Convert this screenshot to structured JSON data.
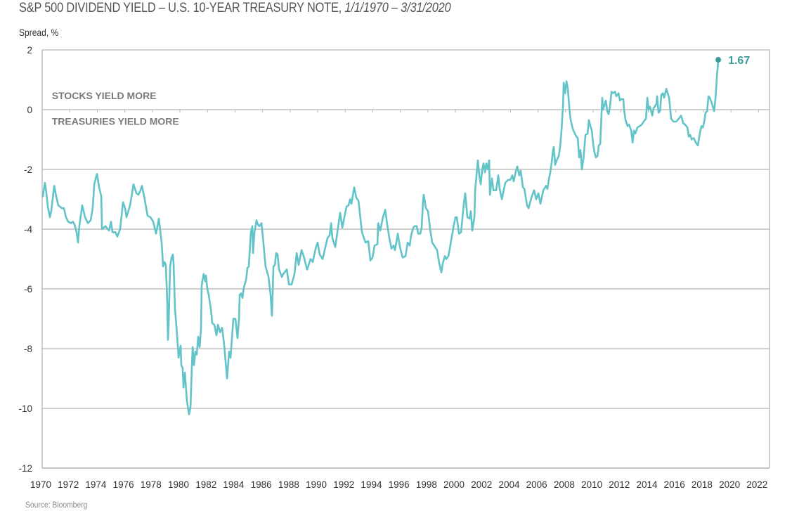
{
  "chart_data": {
    "type": "line",
    "title": "S&P 500 DIVIDEND YIELD – U.S. 10-YEAR TREASURY NOTE,",
    "title_range": "1/1/1970 – 3/31/2020",
    "xlabel": "",
    "ylabel": "Spread, %",
    "source": "Source: Bloomberg",
    "xlim": [
      1970,
      2022.8
    ],
    "ylim": [
      -12,
      2
    ],
    "grid": true,
    "legend": "none",
    "yticks": [
      2,
      0,
      -2,
      -4,
      -6,
      -8,
      -10,
      -12
    ],
    "ytick_labels": [
      "2",
      "0",
      "-2",
      "-4",
      "-6",
      "-8",
      "-10",
      "-12"
    ],
    "xticks": [
      1970,
      1972,
      1974,
      1976,
      1978,
      1980,
      1982,
      1984,
      1986,
      1988,
      1990,
      1992,
      1994,
      1996,
      1998,
      2000,
      2002,
      2004,
      2006,
      2008,
      2010,
      2012,
      2014,
      2016,
      2018,
      2020,
      2022
    ],
    "xtick_labels": [
      "1970",
      "1972",
      "1974",
      "1976",
      "1978",
      "1980",
      "1982",
      "1984",
      "1986",
      "1988",
      "1990",
      "1992",
      "1994",
      "1996",
      "1998",
      "2000",
      "2002",
      "2004",
      "2006",
      "2008",
      "2010",
      "2012",
      "2014",
      "2016",
      "2018",
      "2020",
      "2022"
    ],
    "annotations": [
      {
        "text": "STOCKS YIELD MORE",
        "x": 1970.7,
        "y": 0.35
      },
      {
        "text": "TREASURIES YIELD MORE",
        "x": 1970.7,
        "y": -0.5
      }
    ],
    "end_label": {
      "text": "1.67",
      "value": 1.67
    },
    "colors": {
      "line": "#62c3c8",
      "end_point": "#3a9c98",
      "grid": "#b4b4b4",
      "annotation": "#7a7a7a"
    },
    "series": [
      {
        "name": "S&P 500 dividend yield minus 10-year Treasury yield",
        "x": [
          1970.05,
          1970.2,
          1970.31,
          1970.41,
          1970.56,
          1970.66,
          1970.87,
          1971.02,
          1971.17,
          1971.43,
          1971.58,
          1971.73,
          1971.89,
          1972.09,
          1972.24,
          1972.35,
          1972.5,
          1972.6,
          1972.7,
          1972.91,
          1973.11,
          1973.32,
          1973.52,
          1973.67,
          1973.78,
          1973.88,
          1973.98,
          1974.13,
          1974.29,
          1974.34,
          1974.59,
          1974.85,
          1975.0,
          1975.1,
          1975.31,
          1975.46,
          1975.66,
          1975.87,
          1976.02,
          1976.12,
          1976.38,
          1976.63,
          1976.84,
          1976.99,
          1977.14,
          1977.24,
          1977.4,
          1977.65,
          1977.86,
          1978.06,
          1978.27,
          1978.47,
          1978.67,
          1978.78,
          1978.88,
          1978.98,
          1979.08,
          1979.13,
          1979.18,
          1979.29,
          1979.39,
          1979.49,
          1979.54,
          1979.64,
          1979.8,
          1979.9,
          1980.05,
          1980.1,
          1980.2,
          1980.26,
          1980.36,
          1980.51,
          1980.66,
          1980.77,
          1980.87,
          1980.92,
          1981.02,
          1981.12,
          1981.22,
          1981.33,
          1981.43,
          1981.53,
          1981.58,
          1981.68,
          1981.73,
          1981.84,
          1981.89,
          1981.99,
          1982.09,
          1982.24,
          1982.35,
          1982.5,
          1982.65,
          1982.76,
          1982.91,
          1983.06,
          1983.21,
          1983.42,
          1983.57,
          1983.67,
          1983.88,
          1984.03,
          1984.18,
          1984.29,
          1984.34,
          1984.44,
          1984.54,
          1984.64,
          1984.8,
          1984.9,
          1985.0,
          1985.15,
          1985.26,
          1985.31,
          1985.41,
          1985.56,
          1985.66,
          1985.77,
          1985.92,
          1986.02,
          1986.22,
          1986.43,
          1986.58,
          1986.68,
          1986.79,
          1986.89,
          1986.99,
          1987.09,
          1987.19,
          1987.4,
          1987.5,
          1987.76,
          1987.91,
          1988.11,
          1988.32,
          1988.47,
          1988.62,
          1988.83,
          1988.98,
          1989.23,
          1989.49,
          1989.64,
          1989.85,
          1990.0,
          1990.15,
          1990.36,
          1990.71,
          1990.87,
          1990.97,
          1991.07,
          1991.28,
          1991.63,
          1991.79,
          1992.09,
          1992.24,
          1992.35,
          1992.45,
          1992.65,
          1992.81,
          1992.96,
          1993.21,
          1993.47,
          1993.67,
          1993.83,
          1993.98,
          1994.13,
          1994.34,
          1994.39,
          1994.54,
          1994.74,
          1994.9,
          1995.05,
          1995.2,
          1995.36,
          1995.51,
          1995.61,
          1995.82,
          1995.97,
          1996.17,
          1996.38,
          1996.53,
          1996.68,
          1996.79,
          1996.94,
          1997.04,
          1997.19,
          1997.3,
          1997.45,
          1997.55,
          1997.65,
          1997.7,
          1997.86,
          1998.01,
          1998.16,
          1998.32,
          1998.52,
          1998.67,
          1998.83,
          1998.98,
          1999.08,
          1999.23,
          1999.34,
          1999.49,
          1999.59,
          1999.85,
          2000.0,
          2000.1,
          2000.26,
          2000.41,
          2000.61,
          2000.71,
          2000.87,
          2001.02,
          2001.12,
          2001.22,
          2001.38,
          2001.43,
          2001.63,
          2001.73,
          2001.84,
          2001.94,
          2002.04,
          2002.14,
          2002.24,
          2002.35,
          2002.45,
          2002.5,
          2002.65,
          2002.76,
          2002.96,
          2003.11,
          2003.21,
          2003.37,
          2003.62,
          2003.83,
          2003.98,
          2004.13,
          2004.23,
          2004.39,
          2004.49,
          2004.64,
          2004.74,
          2004.9,
          2005.0,
          2005.2,
          2005.31,
          2005.51,
          2005.71,
          2005.87,
          2006.02,
          2006.17,
          2006.38,
          2006.58,
          2006.68,
          2006.79,
          2006.89,
          2006.99,
          2007.09,
          2007.14,
          2007.24,
          2007.35,
          2007.5,
          2007.6,
          2007.7,
          2007.81,
          2007.86,
          2007.96,
          2008.06,
          2008.16,
          2008.27,
          2008.37,
          2008.52,
          2008.67,
          2008.78,
          2008.88,
          2008.98,
          2009.08,
          2009.18,
          2009.29,
          2009.44,
          2009.59,
          2009.69,
          2009.8,
          2009.9,
          2010.0,
          2010.1,
          2010.2,
          2010.31,
          2010.41,
          2010.51,
          2010.56,
          2010.66,
          2010.71,
          2010.82,
          2010.92,
          2011.02,
          2011.12,
          2011.22,
          2011.33,
          2011.43,
          2011.58,
          2011.68,
          2011.84,
          2011.94,
          2012.04,
          2012.19,
          2012.24,
          2012.35,
          2012.5,
          2012.6,
          2012.76,
          2012.86,
          2012.96,
          2013.06,
          2013.21,
          2013.37,
          2013.52,
          2013.67,
          2013.83,
          2013.93,
          2014.03,
          2014.13,
          2014.29,
          2014.39,
          2014.59,
          2014.64,
          2014.74,
          2014.85,
          2014.95,
          2015.05,
          2015.15,
          2015.31,
          2015.41,
          2015.51,
          2015.66,
          2015.82,
          2016.02,
          2016.22,
          2016.38,
          2016.53,
          2016.68,
          2016.84,
          2016.94,
          2017.04,
          2017.14,
          2017.3,
          2017.45,
          2017.6,
          2017.65,
          2017.76,
          2017.86,
          2017.96,
          2018.06,
          2018.16,
          2018.27,
          2018.37,
          2018.47,
          2018.62,
          2018.78,
          2018.88,
          2018.98,
          2019.08
        ],
        "values": [
          -2.9,
          -2.45,
          -2.8,
          -3.25,
          -3.6,
          -3.4,
          -2.55,
          -2.9,
          -3.2,
          -3.3,
          -3.3,
          -3.6,
          -3.75,
          -3.8,
          -3.75,
          -3.85,
          -4.1,
          -4.45,
          -3.9,
          -3.2,
          -3.6,
          -3.8,
          -3.7,
          -3.3,
          -2.5,
          -2.3,
          -2.15,
          -2.6,
          -2.9,
          -4.0,
          -3.9,
          -4.05,
          -3.75,
          -4.1,
          -4.1,
          -4.25,
          -4.0,
          -3.1,
          -3.3,
          -3.6,
          -3.2,
          -2.5,
          -2.8,
          -2.85,
          -2.7,
          -2.55,
          -2.9,
          -3.55,
          -3.6,
          -3.75,
          -4.15,
          -3.65,
          -4.45,
          -5.25,
          -5.1,
          -5.2,
          -6.45,
          -7.7,
          -7.25,
          -5.25,
          -4.95,
          -4.85,
          -5.15,
          -6.65,
          -7.6,
          -8.3,
          -7.9,
          -8.55,
          -8.65,
          -9.3,
          -8.8,
          -9.75,
          -10.2,
          -9.95,
          -8.55,
          -7.95,
          -8.55,
          -8.1,
          -8.2,
          -7.6,
          -7.95,
          -7.35,
          -5.9,
          -5.6,
          -5.5,
          -5.75,
          -5.55,
          -6.0,
          -6.2,
          -6.65,
          -7.15,
          -7.2,
          -7.55,
          -7.2,
          -7.45,
          -7.3,
          -7.85,
          -9.0,
          -8.1,
          -8.3,
          -7.0,
          -7.0,
          -7.65,
          -7.0,
          -6.2,
          -6.15,
          -6.3,
          -5.95,
          -5.7,
          -5.3,
          -5.25,
          -4.1,
          -3.9,
          -4.8,
          -4.1,
          -3.7,
          -3.85,
          -3.9,
          -3.8,
          -4.25,
          -5.25,
          -5.6,
          -6.2,
          -6.9,
          -5.25,
          -5.2,
          -4.8,
          -4.85,
          -5.35,
          -5.6,
          -5.5,
          -5.35,
          -5.85,
          -5.85,
          -5.5,
          -4.8,
          -5.2,
          -4.7,
          -4.9,
          -5.35,
          -5.0,
          -5.1,
          -4.65,
          -4.45,
          -4.85,
          -5.0,
          -4.3,
          -4.2,
          -3.8,
          -4.3,
          -4.6,
          -3.45,
          -3.95,
          -3.25,
          -3.2,
          -3.0,
          -3.15,
          -2.6,
          -2.95,
          -3.05,
          -4.1,
          -4.45,
          -4.4,
          -5.05,
          -4.95,
          -4.55,
          -4.5,
          -3.8,
          -4.05,
          -3.6,
          -3.35,
          -3.85,
          -4.3,
          -4.65,
          -4.55,
          -4.7,
          -4.15,
          -4.6,
          -4.95,
          -4.9,
          -4.45,
          -4.55,
          -4.2,
          -3.95,
          -3.9,
          -3.9,
          -4.15,
          -4.15,
          -3.95,
          -3.05,
          -2.85,
          -3.3,
          -3.4,
          -4.0,
          -4.45,
          -4.6,
          -4.7,
          -5.15,
          -5.45,
          -5.15,
          -4.9,
          -5.0,
          -4.9,
          -4.65,
          -3.95,
          -3.6,
          -3.6,
          -4.15,
          -4.1,
          -3.15,
          -2.8,
          -3.6,
          -3.65,
          -3.4,
          -4.05,
          -3.6,
          -2.7,
          -1.7,
          -2.2,
          -2.5,
          -2.0,
          -1.8,
          -2.1,
          -1.8,
          -2.0,
          -1.7,
          -2.85,
          -2.3,
          -2.7,
          -2.7,
          -2.2,
          -2.65,
          -3.0,
          -2.45,
          -2.35,
          -2.35,
          -2.2,
          -2.4,
          -2.05,
          -1.9,
          -2.2,
          -2.05,
          -2.6,
          -2.65,
          -3.2,
          -3.3,
          -2.95,
          -2.7,
          -3.0,
          -2.8,
          -3.15,
          -2.7,
          -2.55,
          -2.65,
          -2.3,
          -2.1,
          -1.75,
          -1.35,
          -1.25,
          -1.85,
          -1.7,
          -1.55,
          -1.25,
          -0.7,
          0.15,
          0.9,
          0.55,
          0.95,
          0.7,
          0.05,
          -0.35,
          -0.65,
          -0.8,
          -0.9,
          -0.95,
          -1.6,
          -1.35,
          -2.0,
          -1.65,
          -0.85,
          -0.8,
          -0.35,
          -0.55,
          -0.7,
          -1.15,
          -1.45,
          -1.6,
          -1.55,
          -1.2,
          -1.15,
          -0.6,
          0.4,
          0.0,
          0.15,
          0.3,
          -0.05,
          -0.15,
          0.1,
          0.6,
          0.55,
          0.6,
          0.45,
          0.55,
          0.3,
          0.35,
          0.35,
          0.0,
          -0.35,
          -0.55,
          -0.5,
          -0.7,
          -1.1,
          -0.7,
          -0.8,
          -0.6,
          -0.55,
          -0.5,
          -0.4,
          -0.3,
          0.4,
          0.0,
          0.1,
          -0.2,
          0.05,
          0.2,
          0.45,
          -0.1,
          -0.05,
          0.5,
          0.55,
          0.4,
          0.7,
          0.55,
          0.4,
          -0.3,
          -0.4,
          -0.4,
          -0.3,
          -0.2,
          -0.45,
          -0.5,
          -0.6,
          -0.9,
          -0.85,
          -1.0,
          -0.95,
          -1.1,
          -1.2,
          -1.05,
          -0.75,
          -0.55,
          -0.6,
          -0.4,
          -0.1,
          -0.05,
          0.45,
          0.4,
          0.2,
          -0.05,
          0.4,
          1.1,
          1.67
        ]
      }
    ]
  }
}
